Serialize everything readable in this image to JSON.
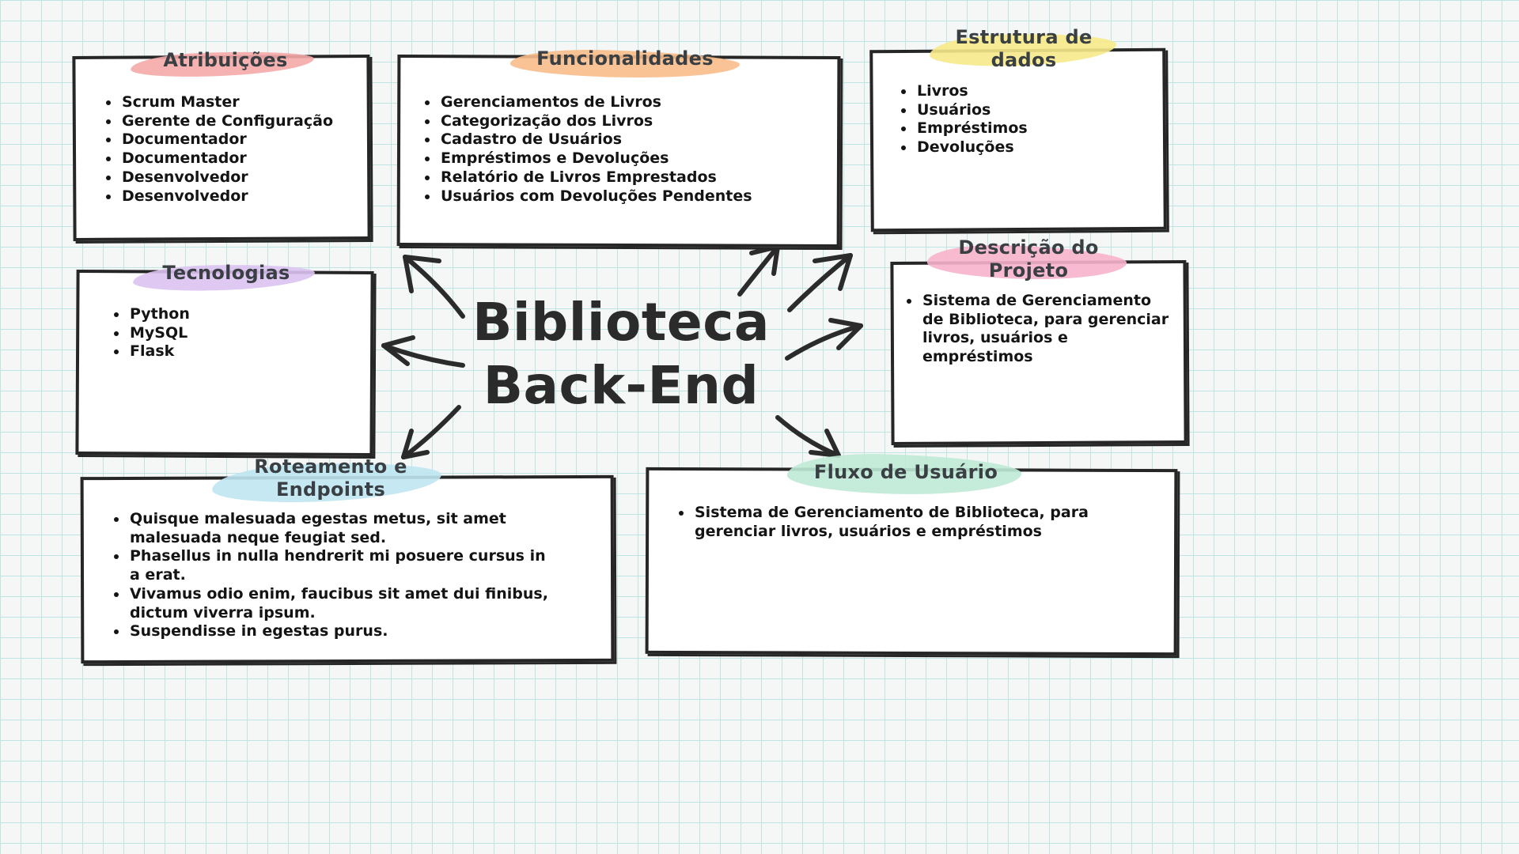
{
  "center": {
    "line1": "Biblioteca",
    "line2": "Back-End"
  },
  "boxes": {
    "atribuicoes": {
      "title": "Atribuições",
      "highlight_color": "#f5a8a8",
      "items": [
        "Scrum Master",
        "Gerente de Configuração",
        "Documentador",
        "Documentador",
        "Desenvolvedor",
        "Desenvolvedor"
      ]
    },
    "funcionalidades": {
      "title": "Funcionalidades",
      "highlight_color": "#f8bd8a",
      "items": [
        "Gerenciamentos de Livros",
        "Categorização dos Livros",
        "Cadastro de Usuários",
        "Empréstimos e Devoluções",
        "Relatório de Livros Emprestados",
        "Usuários com Devoluções Pendentes"
      ]
    },
    "estrutura": {
      "title_line1": "Estrutura de",
      "title_line2": "dados",
      "highlight_color": "#f7e98a",
      "items": [
        "Livros",
        "Usuários",
        "Empréstimos",
        "Devoluções"
      ]
    },
    "tecnologias": {
      "title": "Tecnologias",
      "highlight_color": "#dcc3f2",
      "items": [
        "Python",
        "MySQL",
        "Flask"
      ]
    },
    "descricao": {
      "title_line1": "Descrição do",
      "title_line2": "Projeto",
      "highlight_color": "#f7b3cb",
      "items": [
        "Sistema de Gerenciamento de Biblioteca, para gerenciar livros, usuários e empréstimos"
      ]
    },
    "roteamento": {
      "title_line1": "Roteamento e",
      "title_line2": "Endpoints",
      "highlight_color": "#bfe6f2",
      "items": [
        "Quisque malesuada egestas metus, sit amet malesuada neque feugiat sed.",
        "Phasellus in nulla hendrerit mi posuere cursus in a erat.",
        "Vivamus odio enim, faucibus sit amet dui finibus, dictum viverra ipsum.",
        "Suspendisse in egestas purus."
      ]
    },
    "fluxo": {
      "title": "Fluxo de Usuário",
      "highlight_color": "#bfead6",
      "items": [
        "Sistema de Gerenciamento de Biblioteca, para gerenciar livros, usuários e empréstimos"
      ]
    }
  }
}
